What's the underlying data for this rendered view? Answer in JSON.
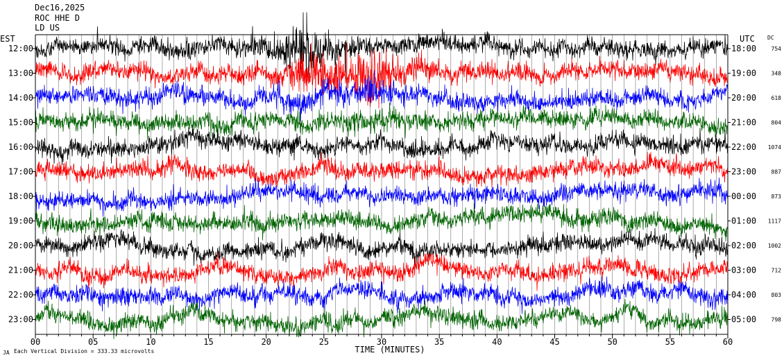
{
  "header": {
    "date": "Dec16,2025",
    "station": "ROC HHE D",
    "network": "LD US"
  },
  "footer": {
    "scale_text": "Each Vertical Division =  333.33 microvolts",
    "logo_text": "JA"
  },
  "chart_data": {
    "type": "helicorder",
    "title": "",
    "xlabel": "TIME (MINUTES)",
    "left_axis_title": "EST",
    "right_axis_title": "UTC",
    "dc_title": "DC",
    "xlim": [
      0,
      60
    ],
    "x_ticks": [
      "00",
      "05",
      "10",
      "15",
      "20",
      "25",
      "30",
      "35",
      "40",
      "45",
      "50",
      "55",
      "60"
    ],
    "trace_colors": [
      "#000000",
      "#ff0000",
      "#0000ff",
      "#006400"
    ],
    "rows": [
      {
        "est": "12:00",
        "utc": "18:00",
        "dc": "754"
      },
      {
        "est": "13:00",
        "utc": "19:00",
        "dc": "348"
      },
      {
        "est": "14:00",
        "utc": "20:00",
        "dc": "618"
      },
      {
        "est": "15:00",
        "utc": "21:00",
        "dc": "804"
      },
      {
        "est": "16:00",
        "utc": "22:00",
        "dc": "1074"
      },
      {
        "est": "17:00",
        "utc": "23:00",
        "dc": "887"
      },
      {
        "est": "18:00",
        "utc": "00:00",
        "dc": "873"
      },
      {
        "est": "19:00",
        "utc": "01:00",
        "dc": "1117"
      },
      {
        "est": "20:00",
        "utc": "02:00",
        "dc": "1002"
      },
      {
        "est": "21:00",
        "utc": "03:00",
        "dc": "712"
      },
      {
        "est": "22:00",
        "utc": "04:00",
        "dc": "803"
      },
      {
        "est": "23:00",
        "utc": "05:00",
        "dc": "798"
      }
    ],
    "events": [
      {
        "minute": 23.5,
        "row": 0,
        "amplitude": "large"
      },
      {
        "minute": 29,
        "row": 1,
        "amplitude": "large"
      }
    ]
  }
}
